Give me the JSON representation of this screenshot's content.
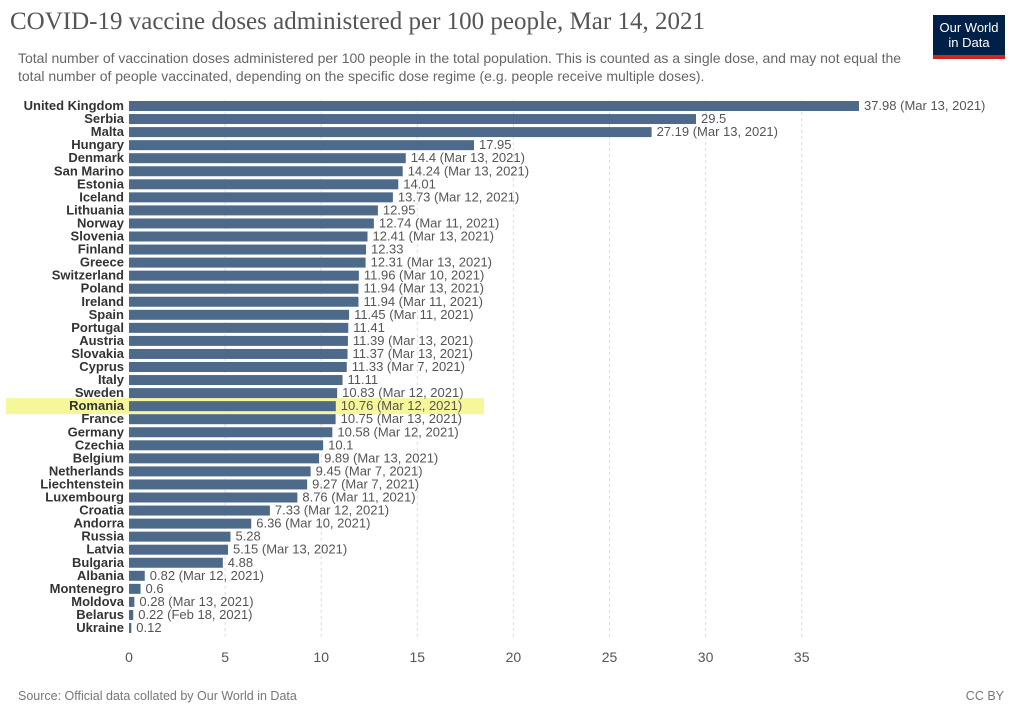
{
  "header": {
    "title": "COVID-19 vaccine doses administered per 100 people, Mar 14, 2021",
    "subtitle": "Total number of vaccination doses administered per 100 people in the total population. This is counted as a single dose, and may not equal the total number of people vaccinated, depending on the specific dose regime (e.g. people receive multiple doses).",
    "logo_line1": "Our World",
    "logo_line2": "in Data"
  },
  "footer": {
    "source": "Source: Official data collated by Our World in Data",
    "license": "CC BY"
  },
  "colors": {
    "bar": "#4e6a8a",
    "highlight": "#f4f48a",
    "grid": "#dddddd",
    "logo_bg": "#002147",
    "logo_accent": "#ce261e"
  },
  "chart_data": {
    "type": "bar",
    "orientation": "horizontal",
    "xlim": [
      0,
      38
    ],
    "xticks": [
      0,
      5,
      10,
      15,
      20,
      25,
      30,
      35
    ],
    "grid": true,
    "highlighted": "Romania",
    "categories": [
      "United Kingdom",
      "Serbia",
      "Malta",
      "Hungary",
      "Denmark",
      "San Marino",
      "Estonia",
      "Iceland",
      "Lithuania",
      "Norway",
      "Slovenia",
      "Finland",
      "Greece",
      "Switzerland",
      "Poland",
      "Ireland",
      "Spain",
      "Portugal",
      "Austria",
      "Slovakia",
      "Cyprus",
      "Italy",
      "Sweden",
      "Romania",
      "France",
      "Germany",
      "Czechia",
      "Belgium",
      "Netherlands",
      "Liechtenstein",
      "Luxembourg",
      "Croatia",
      "Andorra",
      "Russia",
      "Latvia",
      "Bulgaria",
      "Albania",
      "Montenegro",
      "Moldova",
      "Belarus",
      "Ukraine"
    ],
    "values": [
      37.98,
      29.5,
      27.19,
      17.95,
      14.4,
      14.24,
      14.01,
      13.73,
      12.95,
      12.74,
      12.41,
      12.33,
      12.31,
      11.96,
      11.94,
      11.94,
      11.45,
      11.41,
      11.39,
      11.37,
      11.33,
      11.11,
      10.83,
      10.76,
      10.75,
      10.58,
      10.1,
      9.89,
      9.45,
      9.27,
      8.76,
      7.33,
      6.36,
      5.28,
      5.15,
      4.88,
      0.82,
      0.6,
      0.28,
      0.22,
      0.12
    ],
    "labels": [
      "37.98 (Mar 13, 2021)",
      "29.5",
      "27.19 (Mar 13, 2021)",
      "17.95",
      "14.4 (Mar 13, 2021)",
      "14.24 (Mar 13, 2021)",
      "14.01",
      "13.73 (Mar 12, 2021)",
      "12.95",
      "12.74 (Mar 11, 2021)",
      "12.41 (Mar 13, 2021)",
      "12.33",
      "12.31 (Mar 13, 2021)",
      "11.96 (Mar 10, 2021)",
      "11.94 (Mar 13, 2021)",
      "11.94 (Mar 11, 2021)",
      "11.45 (Mar 11, 2021)",
      "11.41",
      "11.39 (Mar 13, 2021)",
      "11.37 (Mar 13, 2021)",
      "11.33 (Mar 7, 2021)",
      "11.11",
      "10.83 (Mar 12, 2021)",
      "10.76 (Mar 12, 2021)",
      "10.75 (Mar 13, 2021)",
      "10.58 (Mar 12, 2021)",
      "10.1",
      "9.89 (Mar 13, 2021)",
      "9.45 (Mar 7, 2021)",
      "9.27 (Mar 7, 2021)",
      "8.76 (Mar 11, 2021)",
      "7.33 (Mar 12, 2021)",
      "6.36 (Mar 10, 2021)",
      "5.28",
      "5.15 (Mar 13, 2021)",
      "4.88",
      "0.82 (Mar 12, 2021)",
      "0.6",
      "0.28 (Mar 13, 2021)",
      "0.22 (Feb 18, 2021)",
      "0.12"
    ]
  }
}
